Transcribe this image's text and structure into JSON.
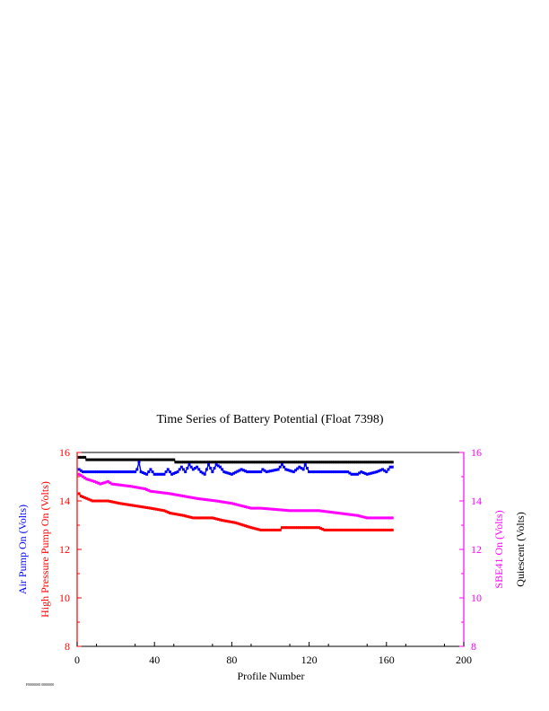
{
  "chart_data": {
    "type": "line",
    "title": "Time Series of Battery Potential (Float 7398)",
    "xlabel": "Profile Number",
    "xlim": [
      0,
      200
    ],
    "xticks": [
      "0",
      "40",
      "80",
      "120",
      "160",
      "200"
    ],
    "left_axis": {
      "ylim": [
        8,
        16
      ],
      "ticks": [
        "8",
        "10",
        "12",
        "14",
        "16"
      ],
      "labels": [
        {
          "text": "Air Pump On (Volts)",
          "color": "#0000ff"
        },
        {
          "text": "High Pressure Pump On (Volts)",
          "color": "#ff0000"
        }
      ],
      "tick_color": "#ff0000"
    },
    "right_axis": {
      "ylim": [
        8,
        16
      ],
      "ticks": [
        "8",
        "10",
        "12",
        "14",
        "16"
      ],
      "labels": [
        {
          "text": "SBE41 On (Volts)",
          "color": "#ff00ff"
        },
        {
          "text": "Quiescent (Volts)",
          "color": "#000000"
        }
      ],
      "tick_color": "#ff00ff"
    },
    "footnote": "F0000000 0000000",
    "series": [
      {
        "color": "#000000",
        "axis": "right",
        "points": [
          [
            1,
            15.8
          ],
          [
            4,
            15.8
          ],
          [
            5,
            15.7
          ],
          [
            50,
            15.7
          ],
          [
            51,
            15.6
          ],
          [
            163,
            15.6
          ]
        ]
      },
      {
        "color": "#0000ff",
        "axis": "left",
        "points": [
          [
            1,
            15.3
          ],
          [
            3,
            15.2
          ],
          [
            30,
            15.2
          ],
          [
            31,
            15.3
          ],
          [
            32,
            15.6
          ],
          [
            33,
            15.2
          ],
          [
            36,
            15.1
          ],
          [
            38,
            15.3
          ],
          [
            40,
            15.1
          ],
          [
            45,
            15.1
          ],
          [
            47,
            15.3
          ],
          [
            49,
            15.1
          ],
          [
            52,
            15.2
          ],
          [
            54,
            15.4
          ],
          [
            56,
            15.2
          ],
          [
            58,
            15.5
          ],
          [
            60,
            15.3
          ],
          [
            62,
            15.4
          ],
          [
            64,
            15.2
          ],
          [
            66,
            15.1
          ],
          [
            68,
            15.5
          ],
          [
            70,
            15.2
          ],
          [
            72,
            15.5
          ],
          [
            74,
            15.4
          ],
          [
            76,
            15.2
          ],
          [
            80,
            15.1
          ],
          [
            85,
            15.3
          ],
          [
            88,
            15.2
          ],
          [
            95,
            15.2
          ],
          [
            96,
            15.3
          ],
          [
            98,
            15.2
          ],
          [
            104,
            15.3
          ],
          [
            106,
            15.5
          ],
          [
            108,
            15.3
          ],
          [
            112,
            15.2
          ],
          [
            115,
            15.4
          ],
          [
            117,
            15.3
          ],
          [
            118,
            15.5
          ],
          [
            120,
            15.2
          ],
          [
            140,
            15.2
          ],
          [
            142,
            15.1
          ],
          [
            145,
            15.1
          ],
          [
            147,
            15.2
          ],
          [
            150,
            15.1
          ],
          [
            155,
            15.2
          ],
          [
            158,
            15.3
          ],
          [
            160,
            15.2
          ],
          [
            162,
            15.4
          ],
          [
            163,
            15.4
          ]
        ]
      },
      {
        "color": "#ff00ff",
        "axis": "right",
        "points": [
          [
            1,
            15.1
          ],
          [
            3,
            15.0
          ],
          [
            5,
            14.9
          ],
          [
            9,
            14.8
          ],
          [
            12,
            14.7
          ],
          [
            16,
            14.8
          ],
          [
            18,
            14.7
          ],
          [
            28,
            14.6
          ],
          [
            35,
            14.5
          ],
          [
            38,
            14.4
          ],
          [
            48,
            14.3
          ],
          [
            55,
            14.2
          ],
          [
            62,
            14.1
          ],
          [
            72,
            14.0
          ],
          [
            80,
            13.9
          ],
          [
            85,
            13.8
          ],
          [
            90,
            13.7
          ],
          [
            95,
            13.7
          ],
          [
            110,
            13.6
          ],
          [
            125,
            13.6
          ],
          [
            135,
            13.5
          ],
          [
            145,
            13.4
          ],
          [
            150,
            13.3
          ],
          [
            163,
            13.3
          ]
        ]
      },
      {
        "color": "#ff0000",
        "axis": "left",
        "points": [
          [
            1,
            14.3
          ],
          [
            2,
            14.2
          ],
          [
            5,
            14.1
          ],
          [
            8,
            14.0
          ],
          [
            16,
            14.0
          ],
          [
            22,
            13.9
          ],
          [
            30,
            13.8
          ],
          [
            38,
            13.7
          ],
          [
            45,
            13.6
          ],
          [
            48,
            13.5
          ],
          [
            55,
            13.4
          ],
          [
            60,
            13.3
          ],
          [
            70,
            13.3
          ],
          [
            75,
            13.2
          ],
          [
            82,
            13.1
          ],
          [
            86,
            13.0
          ],
          [
            90,
            12.9
          ],
          [
            95,
            12.8
          ],
          [
            105,
            12.8
          ],
          [
            106,
            12.9
          ],
          [
            125,
            12.9
          ],
          [
            128,
            12.8
          ],
          [
            163,
            12.8
          ]
        ]
      }
    ]
  }
}
